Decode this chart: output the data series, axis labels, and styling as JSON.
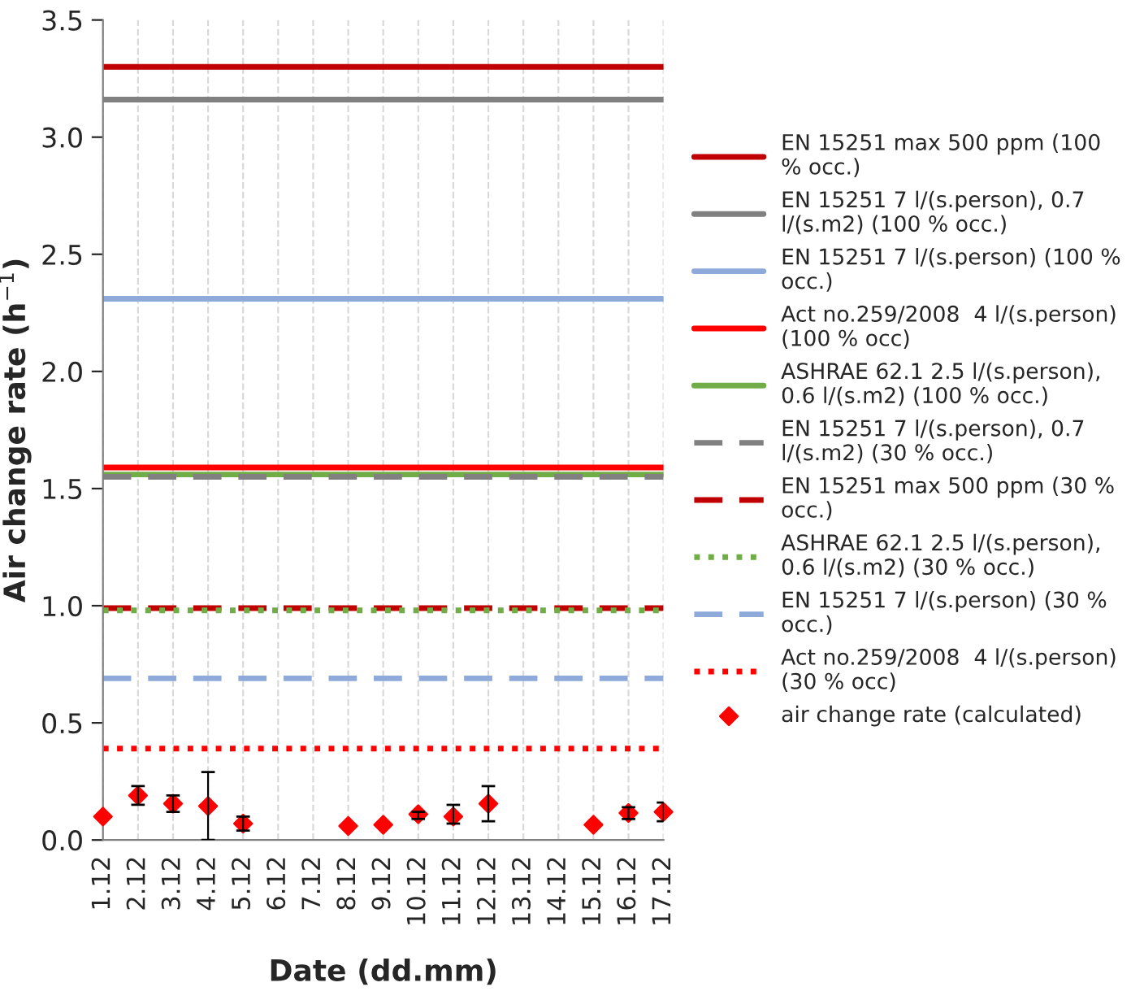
{
  "chart_data": {
    "type": "line",
    "categories": [
      "1.12",
      "2.12",
      "3.12",
      "4.12",
      "5.12",
      "6.12",
      "7.12",
      "8.12",
      "9.12",
      "10.12",
      "11.12",
      "12.12",
      "13.12",
      "14.12",
      "15.12",
      "16.12",
      "17.12"
    ],
    "xlabel": "Date (dd.mm)",
    "ylabel": "Air change rate (h$^{−1}$)",
    "ylim": [
      0,
      3.5
    ],
    "yticks": [
      {
        "value": 0,
        "label": "0.0"
      },
      {
        "value": 0.5,
        "label": "0.5"
      },
      {
        "value": 1,
        "label": "1.0"
      },
      {
        "value": 1.5,
        "label": "1.5"
      },
      {
        "value": 2,
        "label": "2.0"
      },
      {
        "value": 2.5,
        "label": "2.5"
      },
      {
        "value": 3,
        "label": "3.0"
      },
      {
        "value": 3.5,
        "label": "3.5"
      }
    ],
    "grid": "x",
    "legend": "right",
    "series": [
      {
        "name": "EN 15251 max 500 ppm (100 % occ.)",
        "color": "#c00000",
        "line_style": "solid",
        "values": [
          3.3,
          3.3,
          3.3,
          3.3,
          3.3,
          3.3,
          3.3,
          3.3,
          3.3,
          3.3,
          3.3,
          3.3,
          3.3,
          3.3,
          3.3,
          3.3,
          3.3
        ]
      },
      {
        "name": "EN 15251 7 l/(s.person), 0.7 l/(s.m2) (100 % occ.)",
        "color": "#808080",
        "line_style": "solid",
        "values": [
          3.16,
          3.16,
          3.16,
          3.16,
          3.16,
          3.16,
          3.16,
          3.16,
          3.16,
          3.16,
          3.16,
          3.16,
          3.16,
          3.16,
          3.16,
          3.16,
          3.16
        ]
      },
      {
        "name": "EN 15251 7 l/(s.person) (100 % occ.)",
        "color": "#8eaadb",
        "line_style": "solid",
        "values": [
          2.31,
          2.31,
          2.31,
          2.31,
          2.31,
          2.31,
          2.31,
          2.31,
          2.31,
          2.31,
          2.31,
          2.31,
          2.31,
          2.31,
          2.31,
          2.31,
          2.31
        ]
      },
      {
        "name": "Act no.259/2008  4 l/(s.person) (100 % occ)",
        "color": "#ff0000",
        "line_style": "solid",
        "values": [
          1.59,
          1.59,
          1.59,
          1.59,
          1.59,
          1.59,
          1.59,
          1.59,
          1.59,
          1.59,
          1.59,
          1.59,
          1.59,
          1.59,
          1.59,
          1.59,
          1.59
        ]
      },
      {
        "name": "ASHRAE 62.1 2.5 l/(s.person), 0.6 l/(s.m2) (100 % occ.)",
        "color": "#70ad47",
        "line_style": "solid",
        "values": [
          1.56,
          1.56,
          1.56,
          1.56,
          1.56,
          1.56,
          1.56,
          1.56,
          1.56,
          1.56,
          1.56,
          1.56,
          1.56,
          1.56,
          1.56,
          1.56,
          1.56
        ]
      },
      {
        "name": "EN 15251 7 l/(s.person), 0.7 l/(s.m2) (30 % occ.)",
        "color": "#808080",
        "line_style": "dashed",
        "values": [
          1.55,
          1.55,
          1.55,
          1.55,
          1.55,
          1.55,
          1.55,
          1.55,
          1.55,
          1.55,
          1.55,
          1.55,
          1.55,
          1.55,
          1.55,
          1.55,
          1.55
        ]
      },
      {
        "name": "EN 15251 max 500 ppm (30 % occ.)",
        "color": "#c00000",
        "line_style": "dashed",
        "values": [
          0.99,
          0.99,
          0.99,
          0.99,
          0.99,
          0.99,
          0.99,
          0.99,
          0.99,
          0.99,
          0.99,
          0.99,
          0.99,
          0.99,
          0.99,
          0.99,
          0.99
        ]
      },
      {
        "name": "ASHRAE 62.1 2.5 l/(s.person), 0.6 l/(s.m2) (30 % occ.)",
        "color": "#70ad47",
        "line_style": "dotted",
        "values": [
          0.98,
          0.98,
          0.98,
          0.98,
          0.98,
          0.98,
          0.98,
          0.98,
          0.98,
          0.98,
          0.98,
          0.98,
          0.98,
          0.98,
          0.98,
          0.98,
          0.98
        ]
      },
      {
        "name": "EN 15251 7 l/(s.person) (30 % occ.)",
        "color": "#8eaadb",
        "line_style": "dashed",
        "values": [
          0.69,
          0.69,
          0.69,
          0.69,
          0.69,
          0.69,
          0.69,
          0.69,
          0.69,
          0.69,
          0.69,
          0.69,
          0.69,
          0.69,
          0.69,
          0.69,
          0.69
        ]
      },
      {
        "name": "Act no.259/2008  4 l/(s.person) (30 % occ)",
        "color": "#ff0000",
        "line_style": "dotted",
        "values": [
          0.39,
          0.39,
          0.39,
          0.39,
          0.39,
          0.39,
          0.39,
          0.39,
          0.39,
          0.39,
          0.39,
          0.39,
          0.39,
          0.39,
          0.39,
          0.39,
          0.39
        ]
      },
      {
        "name": "air change rate (calculated)",
        "type": "scatter",
        "marker": "diamond",
        "color": "#ff0000",
        "values": [
          0.1,
          0.19,
          0.155,
          0.145,
          0.07,
          null,
          null,
          0.06,
          0.065,
          0.11,
          0.1,
          0.155,
          null,
          null,
          0.065,
          0.115,
          0.12
        ],
        "errors": [
          null,
          [
            0.15,
            0.23
          ],
          [
            0.12,
            0.19
          ],
          [
            0.0,
            0.29
          ],
          [
            0.04,
            0.1
          ],
          null,
          null,
          null,
          null,
          [
            0.09,
            0.12
          ],
          [
            0.07,
            0.15
          ],
          [
            0.08,
            0.23
          ],
          null,
          null,
          null,
          [
            0.09,
            0.14
          ],
          [
            0.08,
            0.16
          ]
        ]
      }
    ]
  }
}
